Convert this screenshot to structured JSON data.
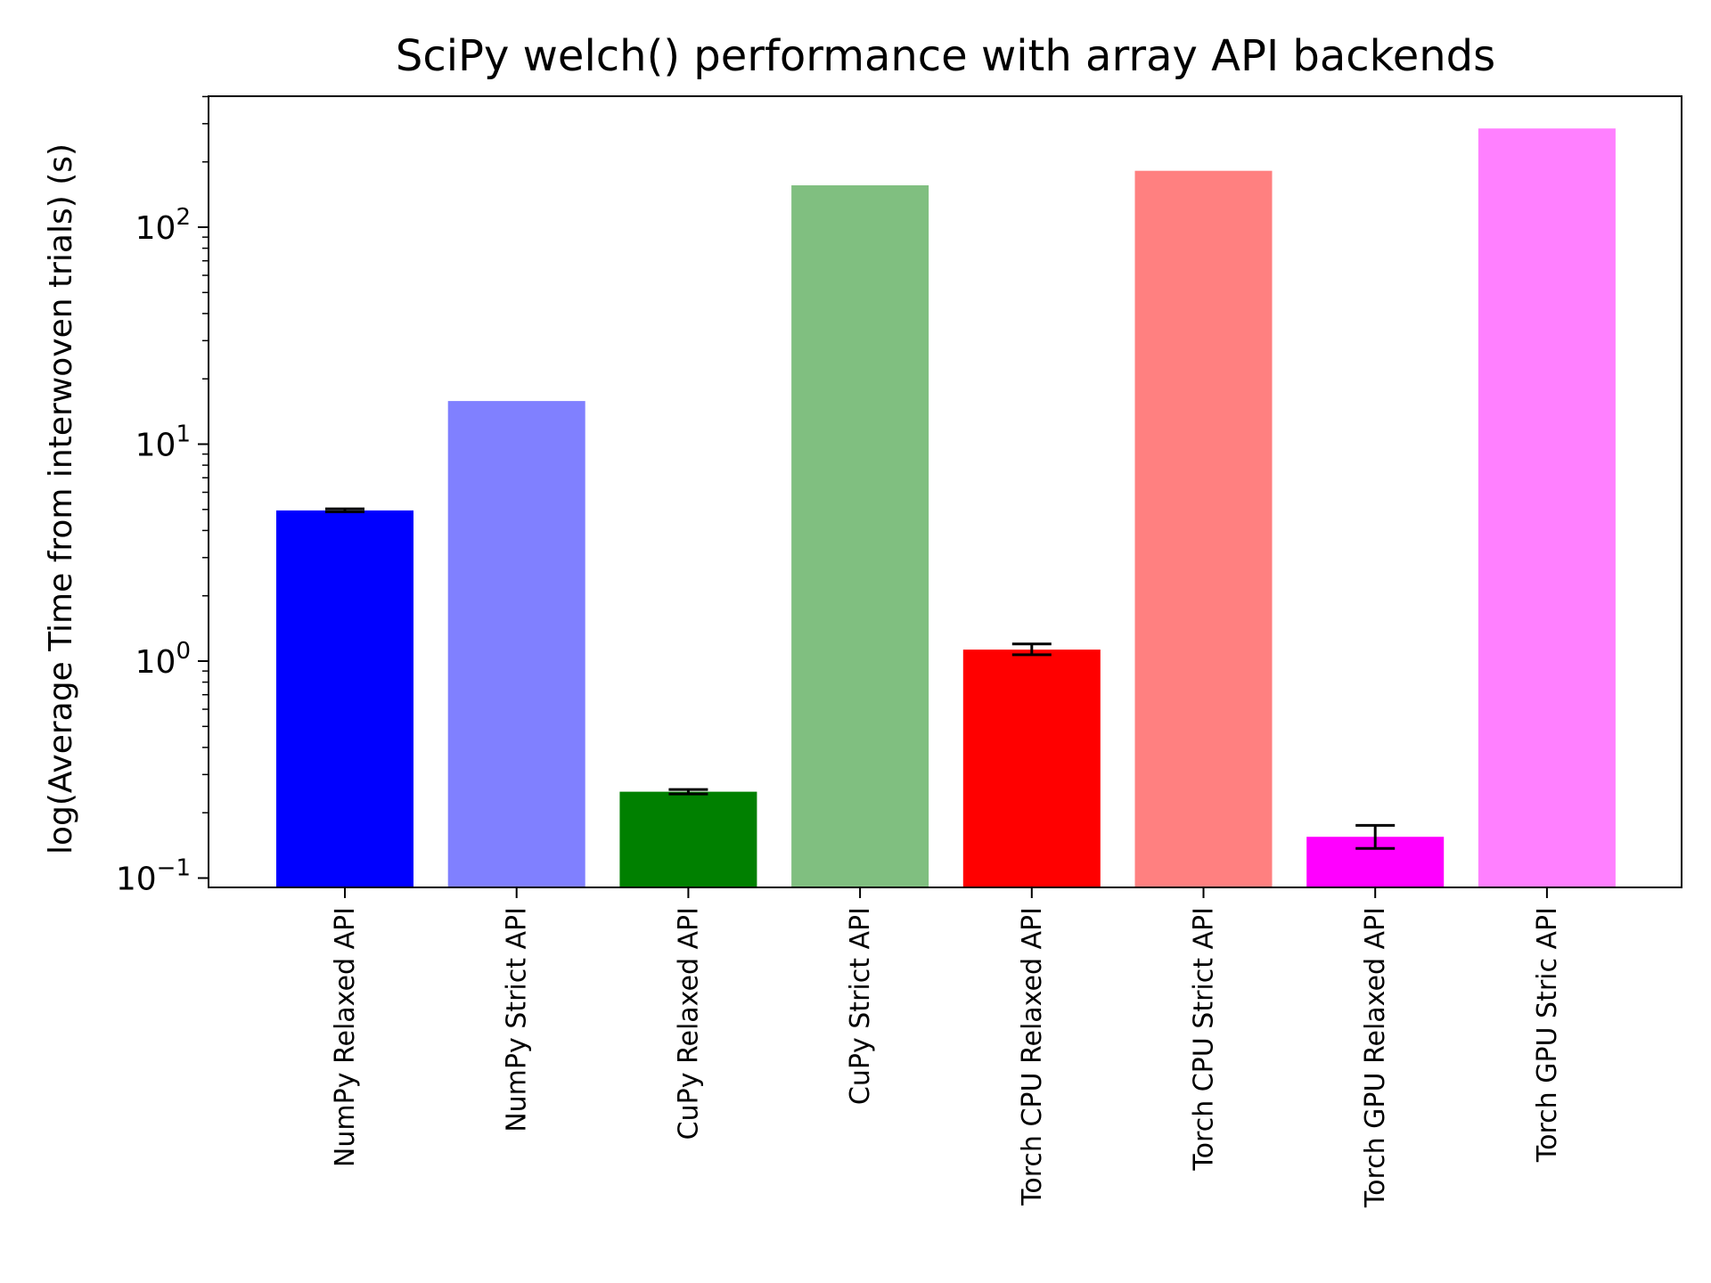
{
  "chart_data": {
    "type": "bar",
    "title": "SciPy welch() performance with array API backends",
    "xlabel": "",
    "ylabel": "log(Average Time from interwoven trials) (s)",
    "yscale": "log",
    "ylim": [
      0.09,
      420
    ],
    "grid": false,
    "legend": "none",
    "categories": [
      "NumPy Relaxed API",
      "NumPy Strict API",
      "CuPy Relaxed API",
      "CuPy Strict API",
      "Torch CPU Relaxed API",
      "Torch CPU Strict API",
      "Torch GPU Relaxed API",
      "Torch GPU Stric API"
    ],
    "values": [
      4.95,
      15.8,
      0.25,
      156,
      1.13,
      182,
      0.155,
      285
    ],
    "error_bars": [
      [
        4.88,
        5.03
      ],
      null,
      [
        0.244,
        0.256
      ],
      null,
      [
        1.07,
        1.2
      ],
      null,
      [
        0.137,
        0.175
      ],
      null
    ],
    "colors": [
      "#0000ff",
      "#8080ff",
      "#008000",
      "#80bf80",
      "#ff0000",
      "#ff8080",
      "#ff00ff",
      "#ff80ff"
    ],
    "yticks": [
      {
        "base": "10",
        "exp": "−1",
        "value": 0.1
      },
      {
        "base": "10",
        "exp": "0",
        "value": 1
      },
      {
        "base": "10",
        "exp": "1",
        "value": 10
      },
      {
        "base": "10",
        "exp": "2",
        "value": 100
      }
    ]
  }
}
